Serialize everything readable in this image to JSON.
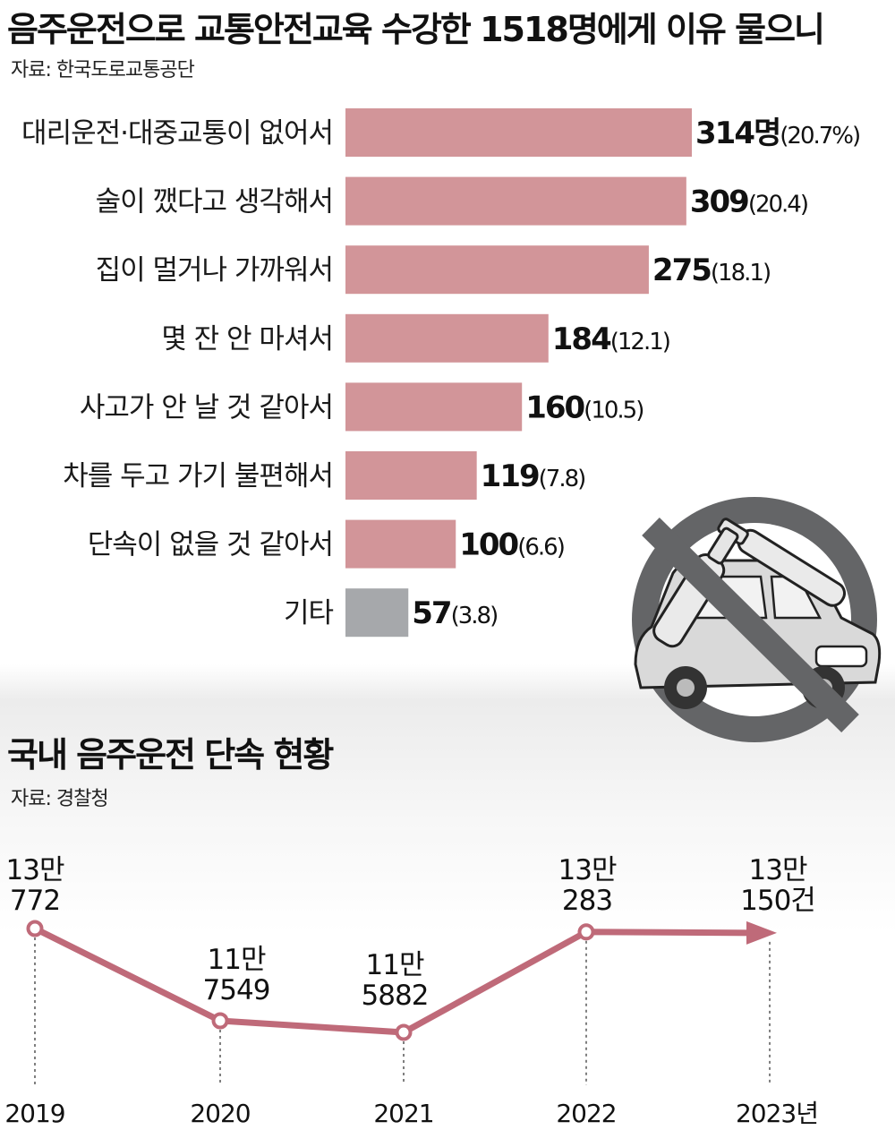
{
  "top": {
    "title": "음주운전으로 교통안전교육 수강한 1518명에게 이유 물으니",
    "source": "자료: 한국도로교통공단"
  },
  "bottom": {
    "title": "국내 음주운전 단속 현황",
    "source": "자료: 경찰청"
  },
  "colors": {
    "bar": "#d29599",
    "bar_other": "#a6a8ab",
    "line": "#bf6a79"
  },
  "icons": [
    "no-drunk-driving-icon"
  ],
  "chart_data": [
    {
      "type": "bar",
      "orientation": "horizontal",
      "categories": [
        "대리운전·대중교통이 없어서",
        "술이 깼다고 생각해서",
        "집이 멀거나 가까워서",
        "몇 잔 안 마셔서",
        "사고가 안 날 것 같아서",
        "차를 두고 가기 불편해서",
        "단속이 없을 것 같아서",
        "기타"
      ],
      "values": [
        314,
        309,
        275,
        184,
        160,
        119,
        100,
        57
      ],
      "value_labels": [
        "314명",
        "309",
        "275",
        "184",
        "160",
        "119",
        "100",
        "57"
      ],
      "percent_labels": [
        "(20.7%)",
        "(20.4)",
        "(18.1)",
        "(12.1)",
        "(10.5)",
        "(7.8)",
        "(6.6)",
        "(3.8)"
      ]
    },
    {
      "type": "line",
      "x": [
        "2019",
        "2020",
        "2021",
        "2022",
        "2023년"
      ],
      "values": [
        130772,
        117549,
        115882,
        130283,
        130150
      ],
      "value_labels": [
        [
          "13만",
          "772"
        ],
        [
          "11만",
          "7549"
        ],
        [
          "11만",
          "5882"
        ],
        [
          "13만",
          "283"
        ],
        [
          "13만",
          "150건"
        ]
      ]
    }
  ]
}
